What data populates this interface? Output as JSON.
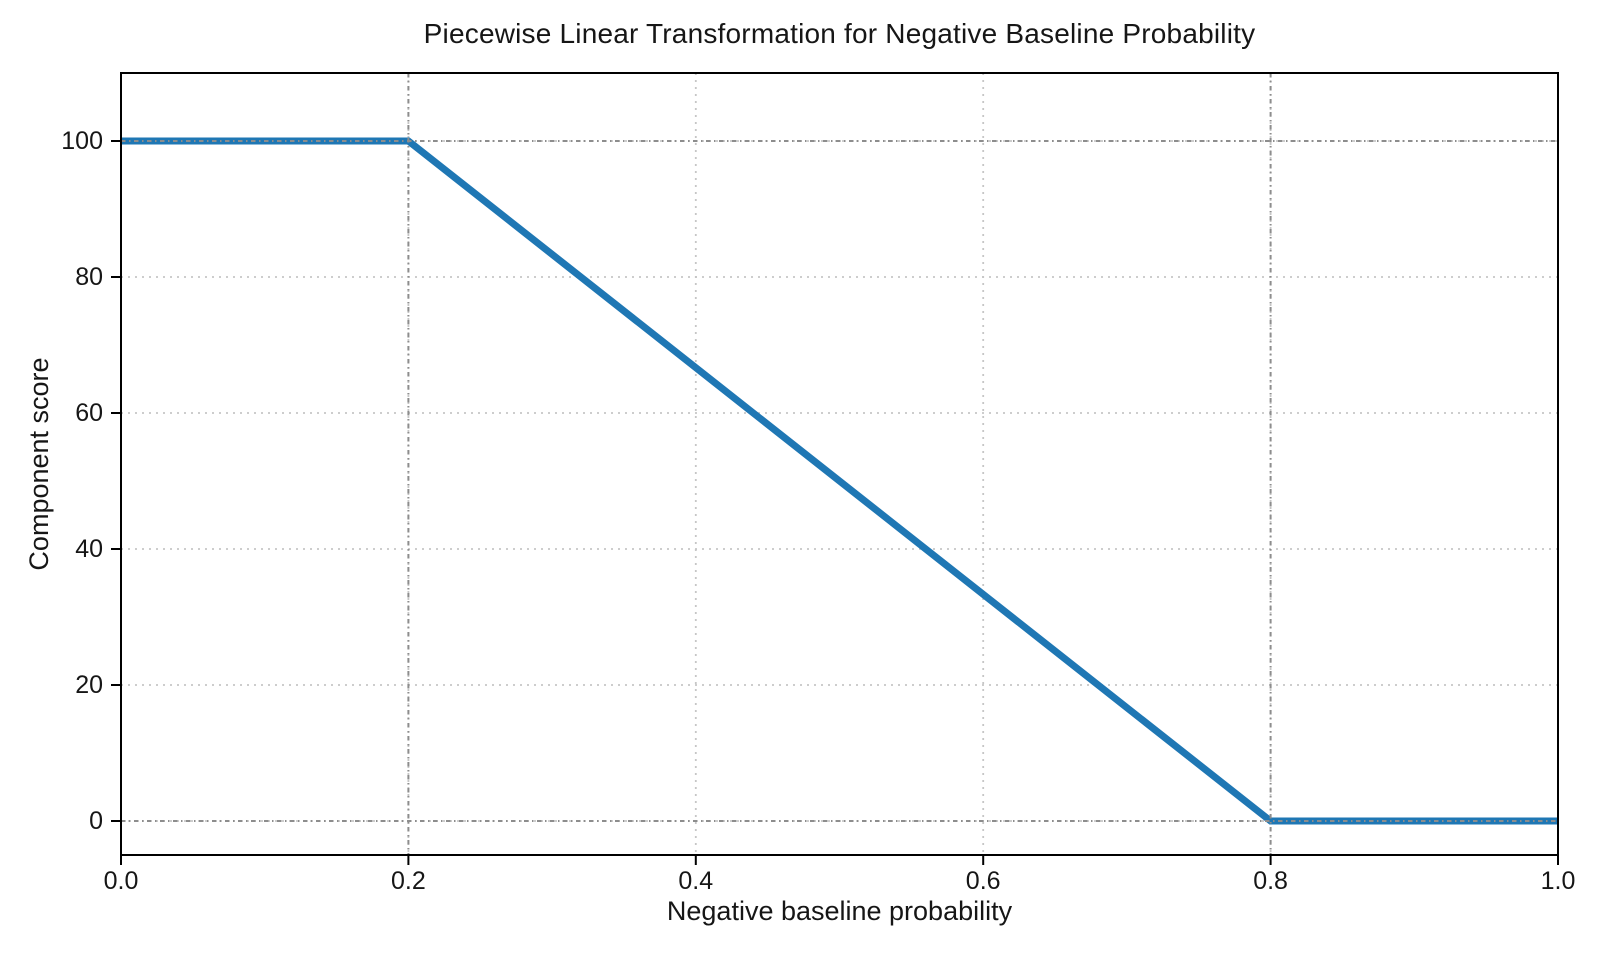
{
  "figure": {
    "background_color": "#ffffff",
    "text_color": "#161616"
  },
  "chart_data": {
    "type": "line",
    "title": "Piecewise Linear Transformation for Negative Baseline Probability",
    "xlabel": "Negative baseline probability",
    "ylabel": "Component score",
    "xlim": [
      0.0,
      1.0
    ],
    "ylim": [
      -5,
      110
    ],
    "x_ticks": [
      0.0,
      0.2,
      0.4,
      0.6,
      0.8,
      1.0
    ],
    "x_tick_labels": [
      "0.0",
      "0.2",
      "0.4",
      "0.6",
      "0.8",
      "1.0"
    ],
    "y_ticks": [
      0,
      20,
      40,
      60,
      80,
      100
    ],
    "y_tick_labels": [
      "0",
      "20",
      "40",
      "60",
      "80",
      "100"
    ],
    "grid": {
      "show": true,
      "linestyle": "dotted",
      "color": "#c6c6c6"
    },
    "reference_lines": {
      "vertical_x": [
        0.2,
        0.8
      ],
      "horizontal_y": [
        0,
        100
      ],
      "color": "#8d8d8d",
      "linestyle": "dash-dot"
    },
    "series": [
      {
        "name": "component_score",
        "color": "#1f77b4",
        "linewidth": 7,
        "x": [
          0.0,
          0.2,
          0.8,
          1.0
        ],
        "y": [
          100,
          100,
          0,
          0
        ]
      }
    ],
    "spine_color": "#000000",
    "legend": null
  }
}
